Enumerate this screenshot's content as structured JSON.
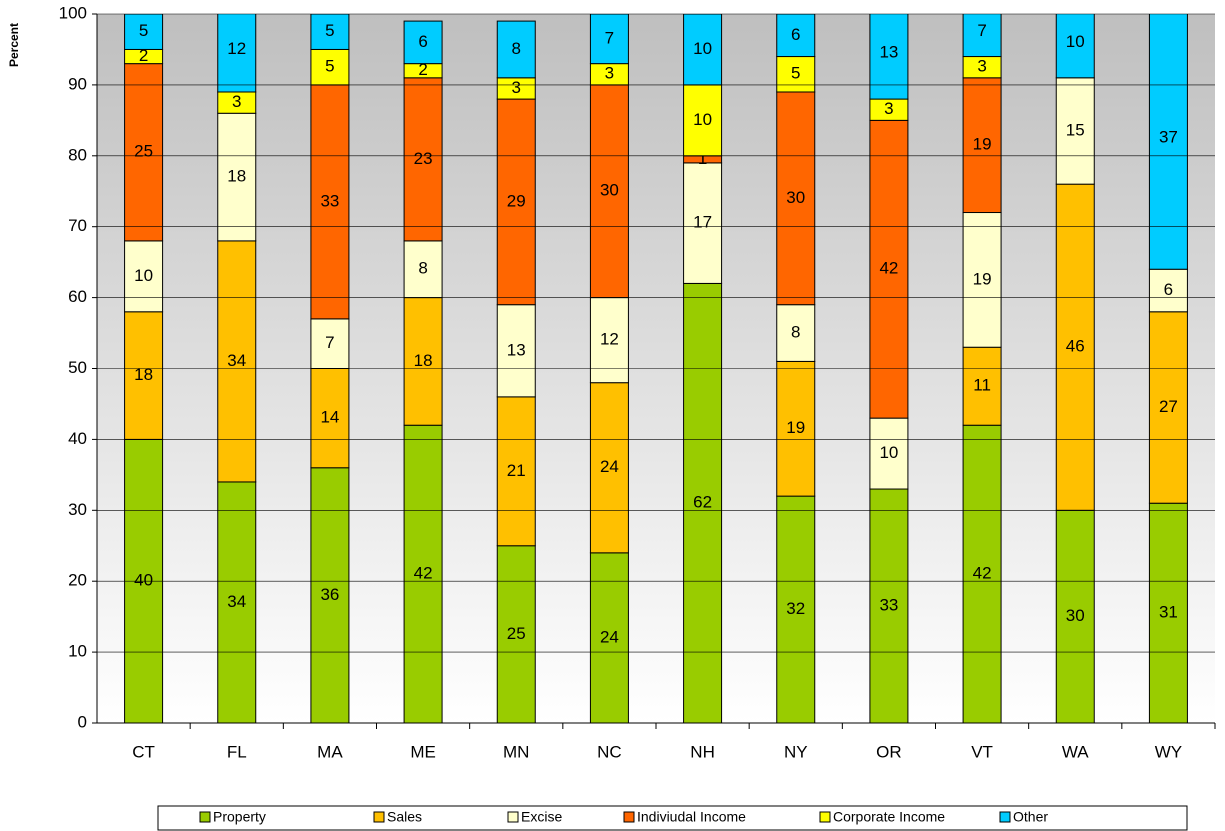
{
  "chart_data": {
    "type": "stacked_bar",
    "y_label": "Percent",
    "categories": [
      "CT",
      "FL",
      "MA",
      "ME",
      "MN",
      "NC",
      "NH",
      "NY",
      "OR",
      "VT",
      "WA",
      "WY"
    ],
    "series": [
      {
        "name": "Property",
        "color": "#99cc00",
        "values": [
          40,
          34,
          36,
          42,
          25,
          24,
          62,
          32,
          33,
          42,
          30,
          31
        ]
      },
      {
        "name": "Sales",
        "color": "#ffc000",
        "values": [
          18,
          34,
          14,
          18,
          21,
          24,
          null,
          19,
          null,
          11,
          46,
          27
        ]
      },
      {
        "name": "Excise",
        "color": "#ffffcc",
        "values": [
          10,
          18,
          7,
          8,
          13,
          12,
          17,
          8,
          10,
          19,
          15,
          6
        ]
      },
      {
        "name": "Indiviudal Income",
        "color": "#ff6600",
        "values": [
          25,
          null,
          33,
          23,
          29,
          30,
          1,
          30,
          42,
          19,
          null,
          null
        ]
      },
      {
        "name": "Corporate Income",
        "color": "#ffff00",
        "values": [
          2,
          3,
          5,
          2,
          3,
          3,
          10,
          5,
          3,
          3,
          null,
          null
        ]
      },
      {
        "name": "Other",
        "color": "#00ccff",
        "values": [
          5,
          12,
          5,
          6,
          8,
          7,
          10,
          6,
          13,
          7,
          10,
          37
        ]
      }
    ],
    "ylim": [
      0,
      100
    ],
    "yticks": [
      0,
      10,
      20,
      30,
      40,
      50,
      60,
      70,
      80,
      90,
      100
    ],
    "legend": "bottom"
  }
}
